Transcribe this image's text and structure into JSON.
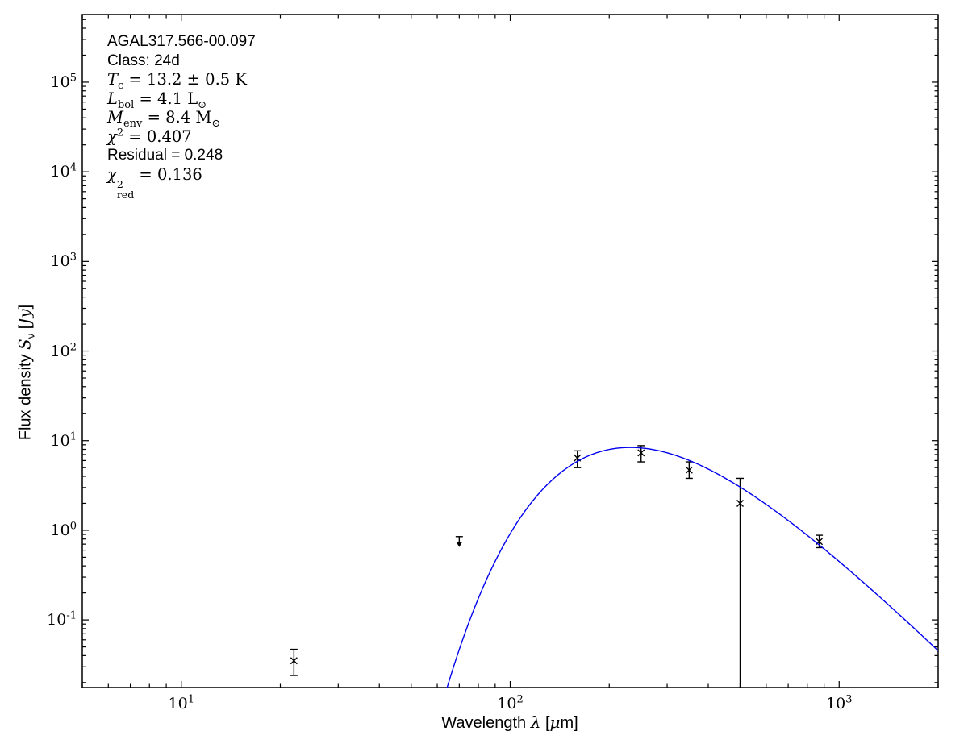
{
  "figure": {
    "background": "#ffffff",
    "frame_color": "#000000",
    "annotation_lines": [
      {
        "text": "AGAL317.566-00.097",
        "font": "plain"
      },
      {
        "text": "Class: 24d",
        "font": "plain"
      },
      {
        "text": "*T*_{c} = 13.2 ± 0.5 K",
        "font": "math"
      },
      {
        "text": "*L*_{bol} = 4.1 L_{⊙}",
        "font": "math"
      },
      {
        "text": "*M*_{env} = 8.4 M_{⊙}",
        "font": "math"
      },
      {
        "text": "*χ*^{2} = 0.407",
        "font": "math"
      },
      {
        "text": "Residual = 0.248",
        "font": "plain"
      },
      {
        "text": "*χ*^{2}_{red} = 0.136",
        "font": "math"
      }
    ]
  },
  "chart_data": {
    "type": "scatter",
    "title": "",
    "xlabel": "Wavelength *λ* [*μ*m]",
    "ylabel": "Flux density *S*_{ν} [*Jy*]",
    "x_scale": "log",
    "y_scale": "log",
    "xlim": [
      5,
      2000
    ],
    "ylim": [
      0.0176,
      569000
    ],
    "grid": false,
    "legend": null,
    "x_major_ticks": [
      {
        "value": 10,
        "label": "10^{1}"
      },
      {
        "value": 100,
        "label": "10^{2}"
      },
      {
        "value": 1000,
        "label": "10^{3}"
      }
    ],
    "y_major_ticks": [
      {
        "value": 0.1,
        "label": "10^{-1}"
      },
      {
        "value": 1,
        "label": "10^{0}"
      },
      {
        "value": 10,
        "label": "10^{1}"
      },
      {
        "value": 100,
        "label": "10^{2}"
      },
      {
        "value": 1000,
        "label": "10^{3}"
      },
      {
        "value": 10000,
        "label": "10^{4}"
      },
      {
        "value": 100000,
        "label": "10^{5}"
      }
    ],
    "series": [
      {
        "name": "photometry",
        "type": "scatter",
        "marker": "x",
        "color": "#000000",
        "points": [
          {
            "wavelength_um": 22,
            "flux_jy": 0.035,
            "err_plus": 0.012,
            "err_minus": 0.011
          },
          {
            "wavelength_um": 70,
            "flux_jy": 0.85,
            "upper_limit": true
          },
          {
            "wavelength_um": 160,
            "flux_jy": 6.4,
            "err_plus": 1.3,
            "err_minus": 1.4
          },
          {
            "wavelength_um": 250,
            "flux_jy": 7.3,
            "err_plus": 1.5,
            "err_minus": 1.5
          },
          {
            "wavelength_um": 350,
            "flux_jy": 4.7,
            "err_plus": 1.1,
            "err_minus": 0.9
          },
          {
            "wavelength_um": 500,
            "flux_jy": 2.0,
            "err_plus": 1.8,
            "err_minus": 2.0
          },
          {
            "wavelength_um": 870,
            "flux_jy": 0.75,
            "err_plus": 0.13,
            "err_minus": 0.11
          }
        ]
      },
      {
        "name": "greybody-fit",
        "type": "line",
        "color": "#0000ee",
        "model": {
          "kind": "greybody",
          "T_K": 13.2,
          "beta": 1.75,
          "norm_wavelength_um": 231,
          "norm_flux_jy": 8.4,
          "hc_over_k_umK": 14388
        }
      }
    ]
  }
}
